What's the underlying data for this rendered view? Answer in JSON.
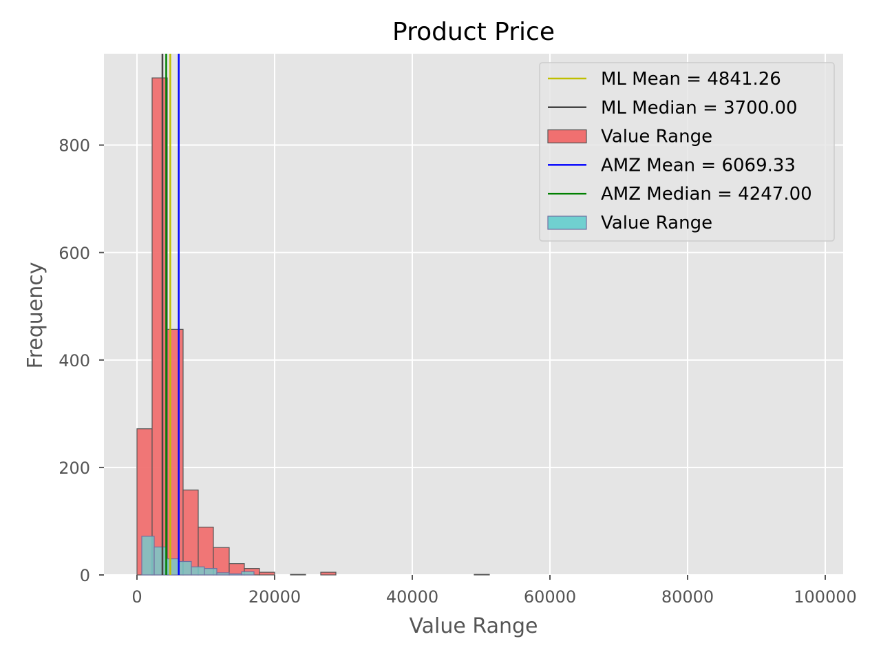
{
  "chart_data": {
    "type": "bar",
    "title": "Product Price",
    "xlabel": "Value Range",
    "ylabel": "Frequency",
    "xlim": [
      -4800,
      102600
    ],
    "ylim": [
      0,
      970
    ],
    "xticks": [
      0,
      20000,
      40000,
      60000,
      80000,
      100000
    ],
    "xtick_labels": [
      "0",
      "20000",
      "40000",
      "60000",
      "80000",
      "100000"
    ],
    "yticks": [
      0,
      200,
      400,
      600,
      800
    ],
    "ytick_labels": [
      "0",
      "200",
      "400",
      "600",
      "800"
    ],
    "grid": true,
    "legend_position": "top-right",
    "background": "#e5e5e5",
    "series": [
      {
        "name": "Value Range",
        "kind": "histogram",
        "color": "#f07070",
        "edge": "#555555",
        "bins": [
          {
            "x0": 0,
            "x1": 2200,
            "count": 272
          },
          {
            "x0": 2200,
            "x1": 4400,
            "count": 925
          },
          {
            "x0": 4400,
            "x1": 6700,
            "count": 457
          },
          {
            "x0": 6700,
            "x1": 8900,
            "count": 158
          },
          {
            "x0": 8900,
            "x1": 11100,
            "count": 89
          },
          {
            "x0": 11100,
            "x1": 13400,
            "count": 51
          },
          {
            "x0": 13400,
            "x1": 15600,
            "count": 21
          },
          {
            "x0": 15600,
            "x1": 17800,
            "count": 12
          },
          {
            "x0": 17800,
            "x1": 20000,
            "count": 5
          },
          {
            "x0": 22300,
            "x1": 24500,
            "count": 1
          },
          {
            "x0": 26700,
            "x1": 28900,
            "count": 5
          },
          {
            "x0": 49000,
            "x1": 51200,
            "count": 1
          }
        ]
      },
      {
        "name": "Value Range",
        "kind": "histogram",
        "color": "#70d0d0",
        "edge": "#7070a0",
        "bins": [
          {
            "x0": 700,
            "x1": 2500,
            "count": 72
          },
          {
            "x0": 2500,
            "x1": 4300,
            "count": 52
          },
          {
            "x0": 4300,
            "x1": 6100,
            "count": 30
          },
          {
            "x0": 6100,
            "x1": 7900,
            "count": 25
          },
          {
            "x0": 7900,
            "x1": 9800,
            "count": 15
          },
          {
            "x0": 9800,
            "x1": 11600,
            "count": 12
          },
          {
            "x0": 11600,
            "x1": 13400,
            "count": 4
          },
          {
            "x0": 13400,
            "x1": 15200,
            "count": 2
          },
          {
            "x0": 15200,
            "x1": 17000,
            "count": 6
          }
        ]
      }
    ],
    "vlines": [
      {
        "name": "ML Mean = 4841.26",
        "x": 4841.26,
        "color": "#bfbf00"
      },
      {
        "name": "ML Median = 3700.00",
        "x": 3700.0,
        "color": "#444444"
      },
      {
        "name": "AMZ Mean = 6069.33",
        "x": 6069.33,
        "color": "#0000ff"
      },
      {
        "name": "AMZ Median = 4247.00",
        "x": 4247.0,
        "color": "#008000"
      }
    ],
    "legend": [
      {
        "label": "ML Mean = 4841.26",
        "kind": "line",
        "color": "#bfbf00"
      },
      {
        "label": "ML Median = 3700.00",
        "kind": "line",
        "color": "#444444"
      },
      {
        "label": "Value Range",
        "kind": "patch",
        "color": "#f07070",
        "edge": "#555555"
      },
      {
        "label": "AMZ Mean = 6069.33",
        "kind": "line",
        "color": "#0000ff"
      },
      {
        "label": "AMZ Median = 4247.00",
        "kind": "line",
        "color": "#008000"
      },
      {
        "label": "Value Range",
        "kind": "patch",
        "color": "#70d0d0",
        "edge": "#7070a0"
      }
    ]
  }
}
